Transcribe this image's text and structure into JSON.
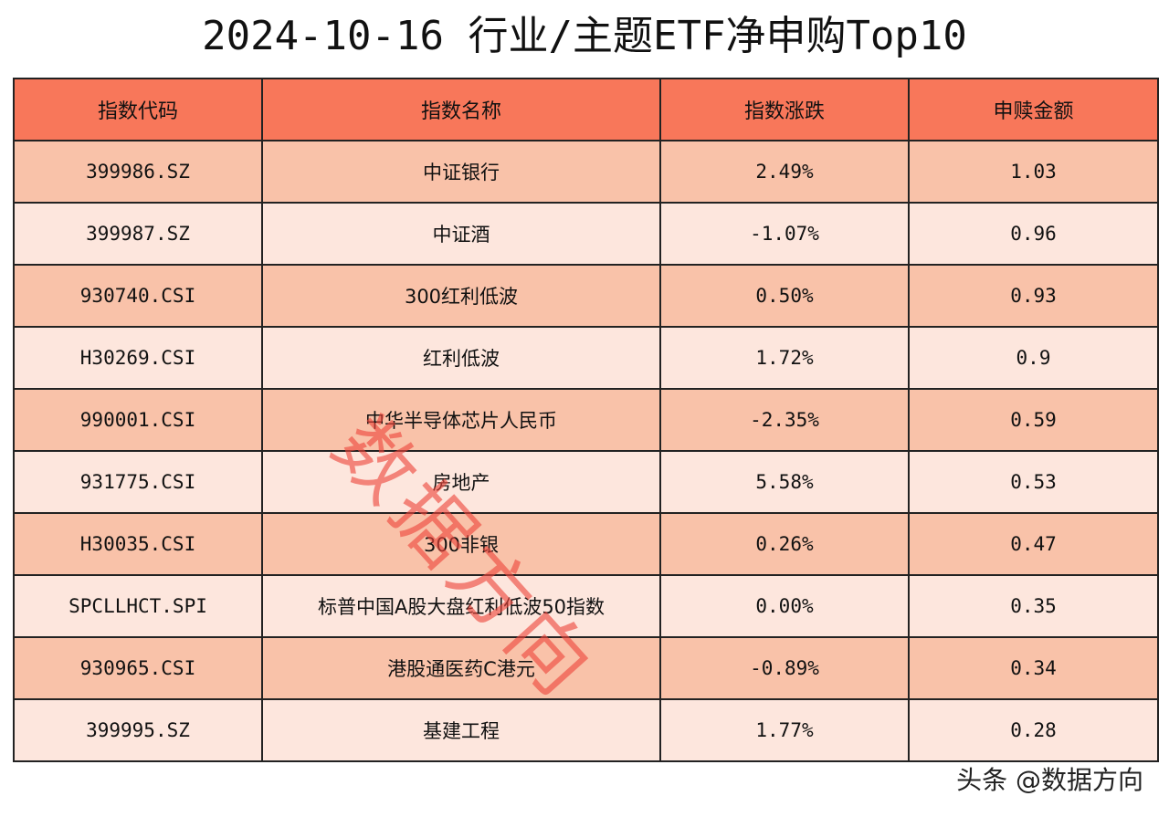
{
  "title": "2024-10-16 行业/主题ETF净申购Top10",
  "colors": {
    "header_bg": "#f8775a",
    "row_odd_bg": "#f9c2a9",
    "row_even_bg": "#fde6dd",
    "watermark": "#ee463c"
  },
  "table": {
    "headers": [
      "指数代码",
      "指数名称",
      "指数涨跌",
      "申赎金额"
    ],
    "rows": [
      {
        "code": "399986.SZ",
        "name": "中证银行",
        "change": "2.49%",
        "amount": "1.03"
      },
      {
        "code": "399987.SZ",
        "name": "中证酒",
        "change": "-1.07%",
        "amount": "0.96"
      },
      {
        "code": "930740.CSI",
        "name": "300红利低波",
        "change": "0.50%",
        "amount": "0.93"
      },
      {
        "code": "H30269.CSI",
        "name": "红利低波",
        "change": "1.72%",
        "amount": "0.9"
      },
      {
        "code": "990001.CSI",
        "name": "中华半导体芯片人民币",
        "change": "-2.35%",
        "amount": "0.59"
      },
      {
        "code": "931775.CSI",
        "name": "房地产",
        "change": "5.58%",
        "amount": "0.53"
      },
      {
        "code": "H30035.CSI",
        "name": "300非银",
        "change": "0.26%",
        "amount": "0.47"
      },
      {
        "code": "SPCLLHCT.SPI",
        "name": "标普中国A股大盘红利低波50指数",
        "change": "0.00%",
        "amount": "0.35"
      },
      {
        "code": "930965.CSI",
        "name": "港股通医药C港元",
        "change": "-0.89%",
        "amount": "0.34"
      },
      {
        "code": "399995.SZ",
        "name": "基建工程",
        "change": "1.77%",
        "amount": "0.28"
      }
    ]
  },
  "watermark": "数据方向",
  "footer": "头条 @数据方向"
}
